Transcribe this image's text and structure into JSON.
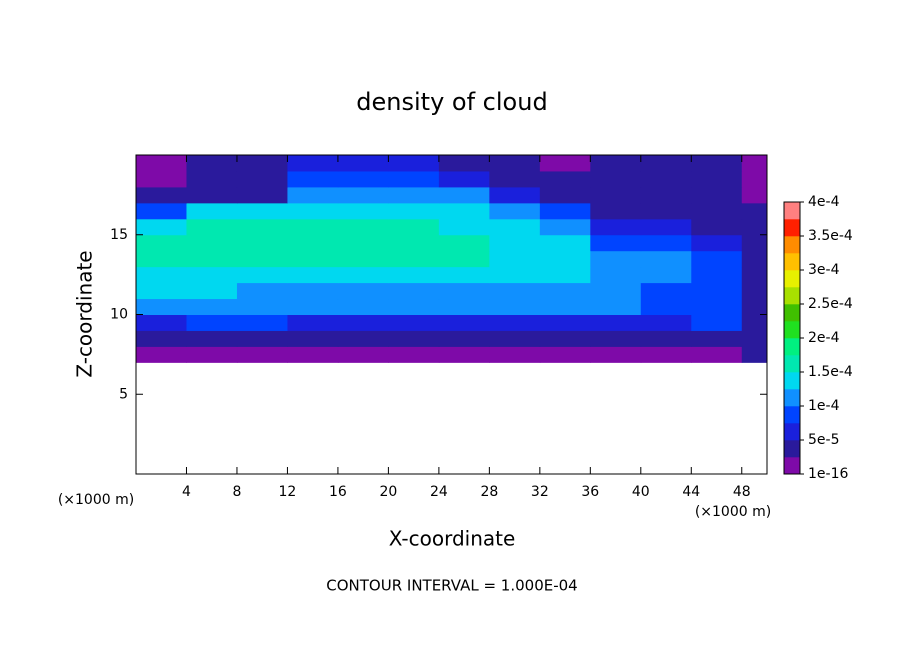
{
  "chart_data": {
    "type": "heatmap",
    "title": "density of cloud",
    "x_label": "X-coordinate",
    "y_label": "Z-coordinate",
    "x_unit_label": "(×1000 m)",
    "y_unit_label": "(×1000 m)",
    "footer": "CONTOUR INTERVAL = 1.000E-04",
    "xlim": [
      0,
      50
    ],
    "ylim": [
      0,
      20
    ],
    "xticks": [
      4,
      8,
      12,
      16,
      20,
      24,
      28,
      32,
      36,
      40,
      44,
      48
    ],
    "yticks": [
      5,
      10,
      15
    ],
    "x_edges": [
      0,
      4,
      8,
      12,
      16,
      20,
      24,
      28,
      32,
      36,
      40,
      44,
      48,
      50
    ],
    "z_edges": [
      7,
      8,
      9,
      10,
      11,
      12,
      13,
      14,
      15,
      16,
      17,
      18,
      19,
      20
    ],
    "z": [
      [
        2e-05,
        2e-05,
        2e-05,
        2e-05,
        2e-05,
        2e-05,
        2e-05,
        2e-05,
        2e-05,
        2e-05,
        2e-05,
        2e-05,
        3e-05
      ],
      [
        4e-05,
        4.5e-05,
        4.5e-05,
        4.5e-05,
        4.5e-05,
        4.5e-05,
        4.5e-05,
        4.5e-05,
        4.5e-05,
        4.5e-05,
        4.5e-05,
        4e-05,
        3e-05
      ],
      [
        7e-05,
        9e-05,
        8e-05,
        7.5e-05,
        7.5e-05,
        7.5e-05,
        7.5e-05,
        7.5e-05,
        7.5e-05,
        7.5e-05,
        7.5e-05,
        8e-05,
        4e-05
      ],
      [
        0.00011,
        0.00011,
        0.000105,
        0.000105,
        0.000105,
        0.000105,
        0.000105,
        0.000105,
        0.000105,
        0.000105,
        0.0001,
        9.5e-05,
        4e-05
      ],
      [
        0.00013,
        0.00013,
        0.000125,
        0.00012,
        0.00012,
        0.00012,
        0.00012,
        0.000115,
        0.00011,
        0.000105,
        0.0001,
        0.0001,
        4e-05
      ],
      [
        0.00015,
        0.00015,
        0.000145,
        0.000145,
        0.000145,
        0.000145,
        0.00014,
        0.000135,
        0.00013,
        0.00012,
        0.00011,
        0.0001,
        5e-05
      ],
      [
        0.00016,
        0.00016,
        0.00016,
        0.00016,
        0.00016,
        0.00016,
        0.000155,
        0.00015,
        0.00014,
        0.00012,
        0.00011,
        9e-05,
        4e-05
      ],
      [
        0.00016,
        0.00016,
        0.00016,
        0.00016,
        0.00016,
        0.00016,
        0.000155,
        0.00015,
        0.00013,
        0.0001,
        9e-05,
        6e-05,
        3e-05
      ],
      [
        0.00015,
        0.000155,
        0.000155,
        0.000155,
        0.000155,
        0.000155,
        0.00015,
        0.00014,
        0.00011,
        6e-05,
        7e-05,
        5e-05,
        3e-05
      ],
      [
        9e-05,
        0.00014,
        0.000145,
        0.000145,
        0.000145,
        0.000145,
        0.00014,
        0.00012,
        8e-05,
        4e-05,
        3e-05,
        4e-05,
        3e-05
      ],
      [
        3e-05,
        5e-05,
        3e-05,
        0.00012,
        0.00012,
        0.00012,
        0.00011,
        6e-05,
        3e-05,
        3e-05,
        3e-05,
        3e-05,
        2e-05
      ],
      [
        2e-05,
        3e-05,
        4e-05,
        9e-05,
        9e-05,
        8e-05,
        6e-05,
        4e-05,
        3e-05,
        3e-05,
        3e-05,
        3e-05,
        2e-05
      ],
      [
        1.5e-05,
        3e-05,
        5e-05,
        7e-05,
        7e-05,
        6e-05,
        5e-05,
        3e-05,
        2e-05,
        3e-05,
        4e-05,
        3e-05,
        2e-05
      ]
    ],
    "clim": [
      1e-16,
      0.0004
    ],
    "cticks": [
      {
        "value": 1e-16,
        "label": "1e-16"
      },
      {
        "value": 5e-05,
        "label": "5e-5"
      },
      {
        "value": 0.0001,
        "label": "1e-4"
      },
      {
        "value": 0.00015,
        "label": "1.5e-4"
      },
      {
        "value": 0.0002,
        "label": "2e-4"
      },
      {
        "value": 0.00025,
        "label": "2.5e-4"
      },
      {
        "value": 0.0003,
        "label": "3e-4"
      },
      {
        "value": 0.00035,
        "label": "3.5e-4"
      },
      {
        "value": 0.0004,
        "label": "4e-4"
      }
    ],
    "colors": [
      "#7e0aa8",
      "#2a1a9c",
      "#1a20dc",
      "#0044ff",
      "#1090ff",
      "#00d8f0",
      "#00e8b0",
      "#00f080",
      "#20e020",
      "#40c000",
      "#a8e000",
      "#e8f000",
      "#ffc000",
      "#ff8c00",
      "#ff2000",
      "#ff8080"
    ]
  }
}
